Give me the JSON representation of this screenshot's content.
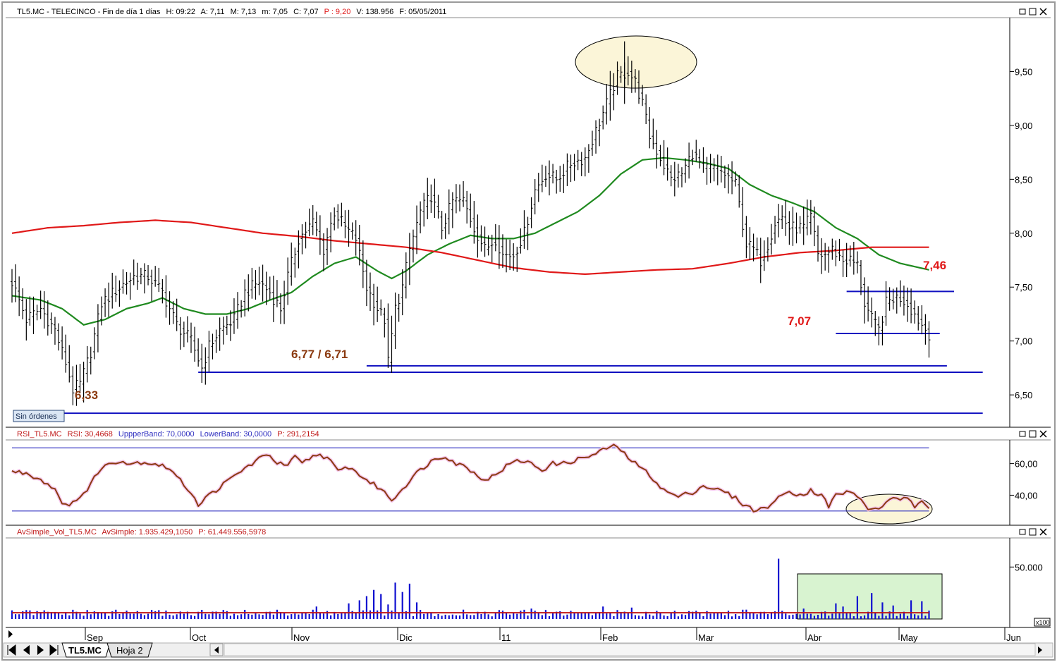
{
  "colors": {
    "price_bar": "#000000",
    "sma_fast": "#1f8a1f",
    "sma_slow": "#e01818",
    "support_line": "#1010c0",
    "rsi_line": "#8b3a10",
    "rsi_band": "#3030c0",
    "volume_bar": "#1010d0",
    "volume_avg": "#c01818",
    "highlight_ellipse": "#fbf5d8",
    "volume_box": "#d8f3d0",
    "annotation_red": "#e01818",
    "annotation_brown": "#8b3a10"
  },
  "panels": {
    "price": {
      "header": {
        "symbol": "TL5.MC - TELECINCO - Fin de día 1 días",
        "h": "H: 09:22",
        "a": "A: 7,11",
        "m": "M: 7,13",
        "mn": "m: 7,05",
        "c": "C: 7,07",
        "p": "P : 9,20",
        "v": "V: 138.956",
        "f": "F: 05/05/2011"
      },
      "orders_label": "Sin órdenes"
    },
    "rsi": {
      "header": {
        "name": "RSI_TL5.MC",
        "rsi": "RSI: 30,4668",
        "upper": "UppperBand: 70,0000",
        "lower": "LowerBand: 30,0000",
        "p": "P: 291,2154"
      }
    },
    "volume": {
      "header": {
        "name": "AvSimple_Vol_TL5.MC",
        "avg": "AvSimple: 1.935.429,1050",
        "p": "P: 61.449.556,5978"
      },
      "scale_tag": "x100"
    }
  },
  "tabs": {
    "active": "TL5.MC",
    "other": "Hoja 2"
  },
  "chart_data": [
    {
      "type": "ohlc",
      "panel": "price",
      "x": "trading days, late Aug 2010 – 5 May 2011",
      "x_tick_labels": [
        "Sep",
        "Oct",
        "Nov",
        "Dic",
        "11",
        "Feb",
        "Mar",
        "Abr",
        "May",
        "Jun"
      ],
      "y_ticks": [
        "9,50",
        "9,00",
        "8,50",
        "8,00",
        "7,50",
        "7,00",
        "6,50"
      ],
      "y_tick_values": [
        9.5,
        9.0,
        8.5,
        8.0,
        7.5,
        7.0,
        6.5
      ],
      "ylim": [
        6.2,
        10.0
      ],
      "close_keypoints": [
        [
          0,
          7.55
        ],
        [
          4,
          7.2
        ],
        [
          8,
          7.3
        ],
        [
          12,
          7.1
        ],
        [
          15,
          6.8
        ],
        [
          17,
          6.55
        ],
        [
          19,
          6.6
        ],
        [
          22,
          6.9
        ],
        [
          25,
          7.35
        ],
        [
          30,
          7.5
        ],
        [
          34,
          7.6
        ],
        [
          38,
          7.6
        ],
        [
          42,
          7.45
        ],
        [
          46,
          7.15
        ],
        [
          50,
          7.0
        ],
        [
          53,
          6.75
        ],
        [
          55,
          6.95
        ],
        [
          58,
          7.1
        ],
        [
          62,
          7.2
        ],
        [
          65,
          7.45
        ],
        [
          69,
          7.55
        ],
        [
          72,
          7.45
        ],
        [
          75,
          7.3
        ],
        [
          77,
          7.6
        ],
        [
          80,
          7.95
        ],
        [
          84,
          8.1
        ],
        [
          87,
          7.85
        ],
        [
          90,
          8.2
        ],
        [
          93,
          8.05
        ],
        [
          96,
          7.95
        ],
        [
          99,
          7.5
        ],
        [
          102,
          7.3
        ],
        [
          104,
          7.2
        ],
        [
          105,
          6.8
        ],
        [
          107,
          7.3
        ],
        [
          109,
          7.5
        ],
        [
          111,
          7.85
        ],
        [
          114,
          8.2
        ],
        [
          117,
          8.35
        ],
        [
          120,
          8.05
        ],
        [
          123,
          8.3
        ],
        [
          126,
          8.3
        ],
        [
          129,
          8.05
        ],
        [
          132,
          7.85
        ],
        [
          135,
          7.95
        ],
        [
          137,
          7.8
        ],
        [
          140,
          7.8
        ],
        [
          143,
          8.0
        ],
        [
          146,
          8.4
        ],
        [
          149,
          8.55
        ],
        [
          152,
          8.5
        ],
        [
          156,
          8.65
        ],
        [
          160,
          8.7
        ],
        [
          163,
          8.95
        ],
        [
          166,
          9.2
        ],
        [
          169,
          9.45
        ],
        [
          172,
          9.5
        ],
        [
          174,
          9.4
        ],
        [
          176,
          9.2
        ],
        [
          178,
          8.9
        ],
        [
          181,
          8.7
        ],
        [
          184,
          8.5
        ],
        [
          187,
          8.55
        ],
        [
          190,
          8.75
        ],
        [
          193,
          8.6
        ],
        [
          196,
          8.6
        ],
        [
          199,
          8.55
        ],
        [
          202,
          8.45
        ],
        [
          205,
          7.9
        ],
        [
          207,
          7.85
        ],
        [
          209,
          7.75
        ],
        [
          211,
          7.9
        ],
        [
          213,
          8.1
        ],
        [
          215,
          8.15
        ],
        [
          217,
          8.05
        ],
        [
          219,
          8.05
        ],
        [
          221,
          8.05
        ],
        [
          223,
          8.15
        ],
        [
          225,
          7.8
        ],
        [
          227,
          7.8
        ],
        [
          229,
          7.85
        ],
        [
          232,
          7.75
        ],
        [
          234,
          7.75
        ],
        [
          236,
          7.7
        ],
        [
          238,
          7.35
        ],
        [
          240,
          7.2
        ],
        [
          242,
          7.1
        ],
        [
          244,
          7.35
        ],
        [
          246,
          7.4
        ],
        [
          248,
          7.4
        ],
        [
          250,
          7.35
        ],
        [
          252,
          7.25
        ],
        [
          254,
          7.15
        ],
        [
          256,
          7.07
        ]
      ],
      "series": [
        {
          "kind": "sma_fast",
          "keypoints": [
            [
              0,
              7.42
            ],
            [
              8,
              7.38
            ],
            [
              14,
              7.3
            ],
            [
              20,
              7.15
            ],
            [
              26,
              7.2
            ],
            [
              32,
              7.3
            ],
            [
              38,
              7.35
            ],
            [
              42,
              7.4
            ],
            [
              48,
              7.3
            ],
            [
              54,
              7.25
            ],
            [
              60,
              7.25
            ],
            [
              66,
              7.3
            ],
            [
              72,
              7.38
            ],
            [
              78,
              7.45
            ],
            [
              84,
              7.6
            ],
            [
              90,
              7.72
            ],
            [
              96,
              7.78
            ],
            [
              102,
              7.65
            ],
            [
              106,
              7.58
            ],
            [
              110,
              7.65
            ],
            [
              116,
              7.8
            ],
            [
              122,
              7.9
            ],
            [
              128,
              7.98
            ],
            [
              134,
              7.95
            ],
            [
              140,
              7.95
            ],
            [
              146,
              8.0
            ],
            [
              152,
              8.1
            ],
            [
              158,
              8.2
            ],
            [
              164,
              8.35
            ],
            [
              170,
              8.55
            ],
            [
              176,
              8.68
            ],
            [
              182,
              8.7
            ],
            [
              188,
              8.68
            ],
            [
              194,
              8.65
            ],
            [
              200,
              8.6
            ],
            [
              206,
              8.45
            ],
            [
              212,
              8.35
            ],
            [
              218,
              8.28
            ],
            [
              224,
              8.2
            ],
            [
              230,
              8.05
            ],
            [
              236,
              7.95
            ],
            [
              242,
              7.8
            ],
            [
              248,
              7.72
            ],
            [
              256,
              7.66
            ]
          ]
        },
        {
          "kind": "sma_slow",
          "keypoints": [
            [
              0,
              8.0
            ],
            [
              10,
              8.05
            ],
            [
              20,
              8.07
            ],
            [
              30,
              8.1
            ],
            [
              40,
              8.12
            ],
            [
              50,
              8.1
            ],
            [
              60,
              8.05
            ],
            [
              70,
              8.0
            ],
            [
              80,
              7.97
            ],
            [
              90,
              7.93
            ],
            [
              100,
              7.9
            ],
            [
              110,
              7.87
            ],
            [
              120,
              7.82
            ],
            [
              130,
              7.75
            ],
            [
              140,
              7.68
            ],
            [
              150,
              7.64
            ],
            [
              160,
              7.62
            ],
            [
              170,
              7.64
            ],
            [
              180,
              7.66
            ],
            [
              190,
              7.67
            ],
            [
              200,
              7.72
            ],
            [
              210,
              7.78
            ],
            [
              220,
              7.82
            ],
            [
              230,
              7.84
            ],
            [
              240,
              7.87
            ],
            [
              248,
              7.87
            ],
            [
              256,
              7.87
            ]
          ]
        }
      ],
      "annotations": [
        "6,33",
        "6,77 / 6,71",
        "7,07",
        "7,46"
      ],
      "support_levels": [
        {
          "label": "6,33",
          "value": 6.33,
          "from": 13,
          "to": 271
        },
        {
          "label": "6,71",
          "value": 6.71,
          "from": 52,
          "to": 271
        },
        {
          "label": "6,77",
          "value": 6.77,
          "from": 99,
          "to": 261
        },
        {
          "label": "7,07",
          "value": 7.07,
          "from": 230,
          "to": 259
        },
        {
          "label": "7,46",
          "value": 7.46,
          "from": 233,
          "to": 263
        }
      ]
    },
    {
      "type": "line",
      "panel": "rsi",
      "y_ticks": [
        "60,00",
        "40,00"
      ],
      "y_tick_values": [
        60,
        40
      ],
      "ylim": [
        21,
        75
      ],
      "bands": [
        70,
        30
      ],
      "keypoints": [
        [
          0,
          55
        ],
        [
          4,
          54
        ],
        [
          8,
          50
        ],
        [
          12,
          44
        ],
        [
          14,
          36
        ],
        [
          16,
          32
        ],
        [
          18,
          38
        ],
        [
          21,
          43
        ],
        [
          24,
          55
        ],
        [
          27,
          60
        ],
        [
          30,
          62
        ],
        [
          33,
          60
        ],
        [
          36,
          61
        ],
        [
          40,
          60
        ],
        [
          44,
          57
        ],
        [
          47,
          49
        ],
        [
          50,
          42
        ],
        [
          52,
          34
        ],
        [
          55,
          40
        ],
        [
          58,
          45
        ],
        [
          62,
          52
        ],
        [
          65,
          57
        ],
        [
          69,
          63
        ],
        [
          72,
          66
        ],
        [
          74,
          60
        ],
        [
          77,
          59
        ],
        [
          79,
          64
        ],
        [
          81,
          60
        ],
        [
          85,
          66
        ],
        [
          88,
          64
        ],
        [
          91,
          55
        ],
        [
          94,
          58
        ],
        [
          97,
          53
        ],
        [
          100,
          48
        ],
        [
          103,
          44
        ],
        [
          106,
          37
        ],
        [
          109,
          44
        ],
        [
          112,
          52
        ],
        [
          115,
          58
        ],
        [
          118,
          63
        ],
        [
          121,
          65
        ],
        [
          124,
          60
        ],
        [
          127,
          58
        ],
        [
          130,
          52
        ],
        [
          133,
          50
        ],
        [
          136,
          55
        ],
        [
          139,
          60
        ],
        [
          142,
          62
        ],
        [
          145,
          60
        ],
        [
          148,
          56
        ],
        [
          151,
          60
        ],
        [
          154,
          60
        ],
        [
          157,
          62
        ],
        [
          160,
          64
        ],
        [
          163,
          66
        ],
        [
          166,
          70
        ],
        [
          169,
          71
        ],
        [
          171,
          66
        ],
        [
          174,
          60
        ],
        [
          178,
          53
        ],
        [
          182,
          43
        ],
        [
          186,
          39
        ],
        [
          190,
          42
        ],
        [
          193,
          46
        ],
        [
          196,
          44
        ],
        [
          199,
          42
        ],
        [
          202,
          38
        ],
        [
          205,
          33
        ],
        [
          208,
          30
        ],
        [
          211,
          33
        ],
        [
          214,
          38
        ],
        [
          217,
          43
        ],
        [
          220,
          40
        ],
        [
          223,
          43
        ],
        [
          226,
          40
        ],
        [
          228,
          33
        ],
        [
          230,
          40
        ],
        [
          233,
          42
        ],
        [
          236,
          40
        ],
        [
          238,
          34
        ],
        [
          240,
          30
        ],
        [
          242,
          32
        ],
        [
          244,
          35
        ],
        [
          246,
          39
        ],
        [
          248,
          38
        ],
        [
          250,
          37
        ],
        [
          252,
          33
        ],
        [
          254,
          35
        ],
        [
          256,
          31
        ]
      ]
    },
    {
      "type": "bar",
      "panel": "volume",
      "y_ticks": [
        "50.000"
      ],
      "y_tick_values": [
        50000
      ],
      "ylim": [
        0,
        78000
      ],
      "average": 6000,
      "spikes": [
        [
          32,
          8000
        ],
        [
          85,
          12000
        ],
        [
          94,
          15000
        ],
        [
          97,
          18000
        ],
        [
          99,
          22000
        ],
        [
          101,
          28000
        ],
        [
          103,
          24000
        ],
        [
          105,
          14000
        ],
        [
          107,
          35000
        ],
        [
          109,
          26000
        ],
        [
          111,
          34000
        ],
        [
          113,
          16000
        ],
        [
          126,
          9000
        ],
        [
          145,
          10000
        ],
        [
          165,
          12000
        ],
        [
          173,
          11000
        ],
        [
          205,
          9000
        ],
        [
          214,
          58000
        ],
        [
          221,
          10000
        ],
        [
          230,
          15000
        ],
        [
          232,
          12000
        ],
        [
          236,
          22000
        ],
        [
          240,
          25000
        ],
        [
          243,
          16000
        ],
        [
          246,
          13000
        ],
        [
          251,
          18000
        ],
        [
          254,
          17000
        ]
      ]
    }
  ]
}
